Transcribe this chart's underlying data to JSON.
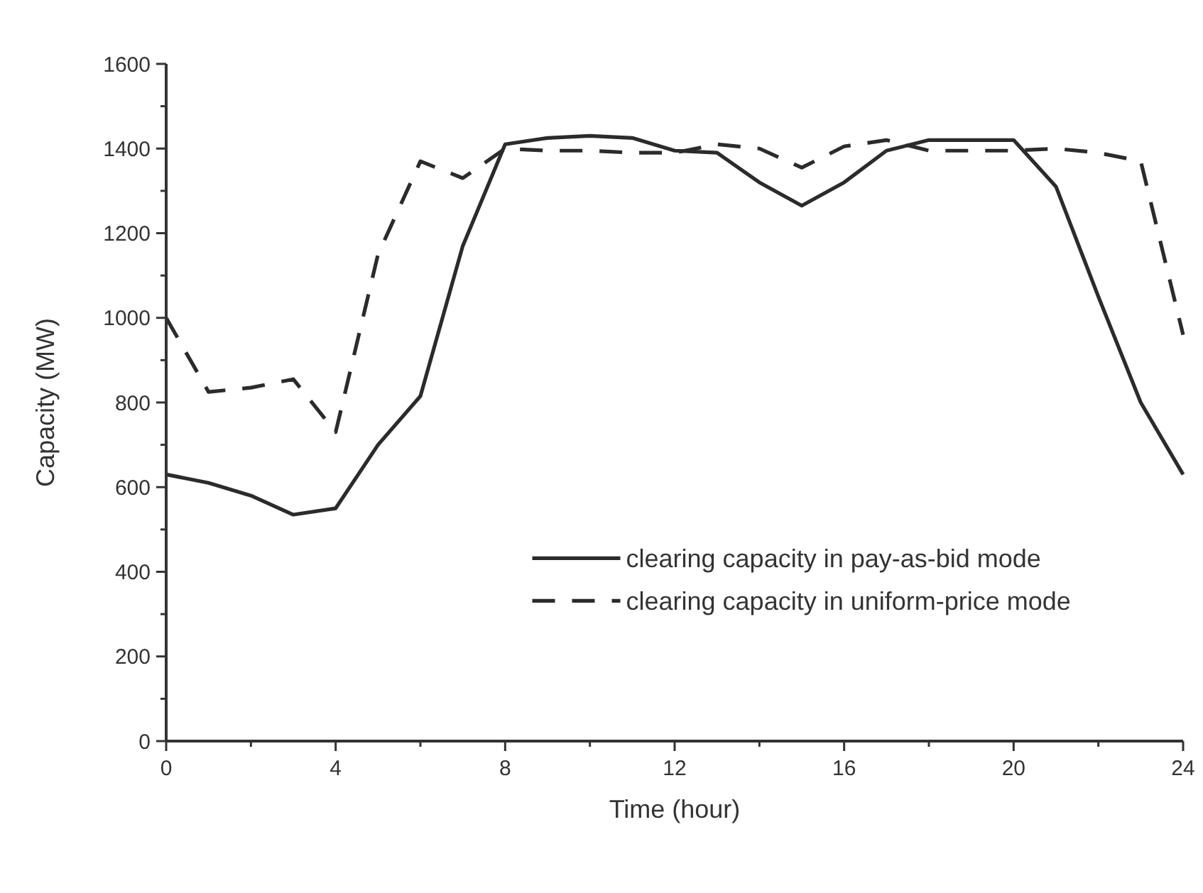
{
  "chart_data": {
    "type": "line",
    "xlabel": "Time (hour)",
    "ylabel": "Capacity (MW)",
    "x": [
      0,
      1,
      2,
      3,
      4,
      5,
      6,
      7,
      8,
      9,
      10,
      11,
      12,
      13,
      14,
      15,
      16,
      17,
      18,
      19,
      20,
      21,
      22,
      23,
      24
    ],
    "series": [
      {
        "name": "clearing capacity in pay-as-bid mode",
        "color": "#2b2b2b",
        "line_style": "solid",
        "values": [
          630,
          610,
          580,
          535,
          550,
          700,
          815,
          1170,
          1410,
          1425,
          1430,
          1425,
          1395,
          1390,
          1320,
          1265,
          1320,
          1395,
          1420,
          1420,
          1420,
          1310,
          1050,
          800,
          630
        ]
      },
      {
        "name": "clearing capacity in uniform-price mode",
        "color": "#2b2b2b",
        "line_style": "dashed",
        "values": [
          1000,
          825,
          835,
          855,
          730,
          1150,
          1370,
          1330,
          1400,
          1395,
          1395,
          1390,
          1390,
          1410,
          1400,
          1355,
          1405,
          1420,
          1395,
          1395,
          1395,
          1400,
          1390,
          1370,
          960
        ]
      }
    ],
    "xlim": [
      0,
      24
    ],
    "xticks": [
      0,
      {
        "value": 2,
        "label": null
      },
      4,
      {
        "value": 6,
        "label": null
      },
      8,
      {
        "value": 10,
        "label": null
      },
      12,
      {
        "value": 14,
        "label": null
      },
      16,
      {
        "value": 18,
        "label": null
      },
      20,
      {
        "value": 22,
        "label": null
      },
      24
    ],
    "ylim": [
      0,
      1600
    ],
    "yticks": [
      0,
      {
        "value": 100,
        "label": null
      },
      200,
      {
        "value": 300,
        "label": null
      },
      400,
      {
        "value": 500,
        "label": null
      },
      600,
      {
        "value": 700,
        "label": null
      },
      800,
      {
        "value": 900,
        "label": null
      },
      1000,
      {
        "value": 1100,
        "label": null
      },
      1200,
      {
        "value": 1300,
        "label": null
      },
      1400,
      {
        "value": 1500,
        "label": null
      },
      1600
    ],
    "grid": false,
    "legend": "right",
    "marker": "none"
  }
}
